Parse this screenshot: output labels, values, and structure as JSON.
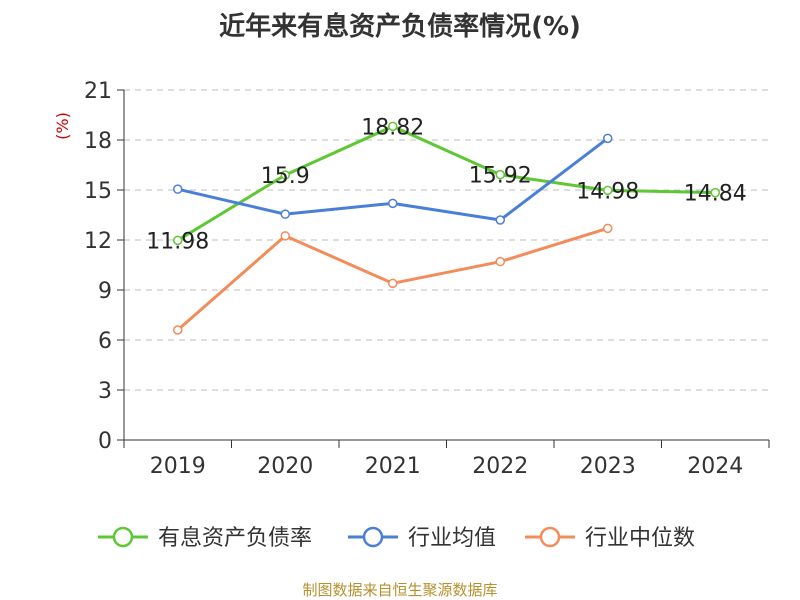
{
  "title": "近年来有息资产负债率情况(%)",
  "source": "制图数据来自恒生聚源数据库",
  "chart_data": {
    "type": "line",
    "title": "近年来有息资产负债率情况(%)",
    "ylabel": "(%)",
    "xlabel": "",
    "categories": [
      "2019",
      "2020",
      "2021",
      "2022",
      "2023",
      "2024"
    ],
    "ylim": [
      0,
      21
    ],
    "yticks": [
      0,
      3,
      6,
      9,
      12,
      15,
      18,
      21
    ],
    "grid": true,
    "legend": "bottom",
    "series": [
      {
        "name": "有息资产负债率",
        "color": "#5ec734",
        "values": [
          11.98,
          15.9,
          18.82,
          15.92,
          14.98,
          14.84
        ],
        "labels": [
          "11.98",
          "15.9",
          "18.82",
          "15.92",
          "14.98",
          "14.84"
        ]
      },
      {
        "name": "行业均值",
        "color": "#4a7fd8",
        "values": [
          15.05,
          13.55,
          14.2,
          13.2,
          18.1,
          null
        ]
      },
      {
        "name": "行业中位数",
        "color": "#f28c5a",
        "values": [
          6.6,
          12.25,
          9.4,
          10.7,
          12.7,
          null
        ]
      }
    ]
  }
}
